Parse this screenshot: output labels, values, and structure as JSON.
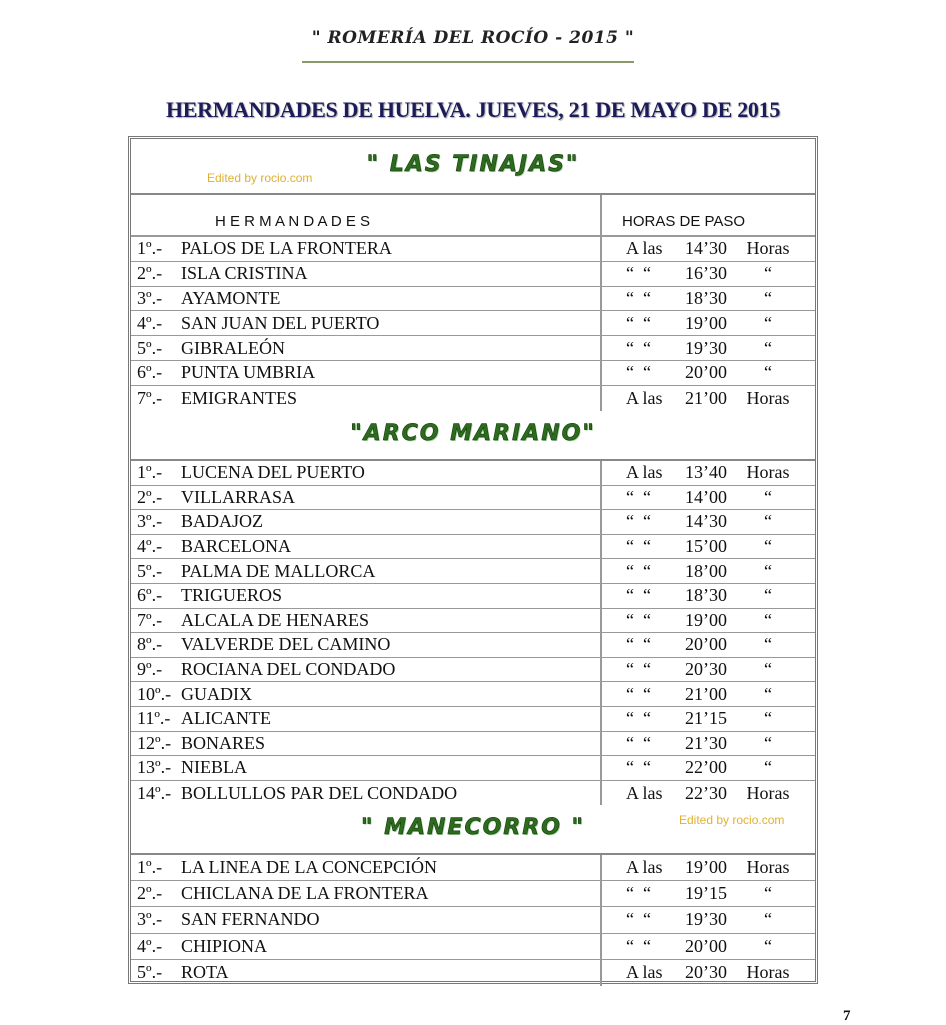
{
  "header": {
    "top_title": "\" ROMERÍA DEL ROCÍO - 2015 \"",
    "main_title": "HERMANDADES DE HUELVA. JUEVES, 21 DE MAYO DE 2015"
  },
  "columns": {
    "hermandades": "H E R M A N D A D E S",
    "horas": "HORAS DE PASO"
  },
  "watermark": "Edited by rocio.com",
  "sections": [
    {
      "title": "\" LAS TINAJAS\"",
      "rows": [
        {
          "n": "1º.-",
          "name": "PALOS DE LA FRONTERA",
          "pre": "A las",
          "time": "14’30",
          "suf": "Horas"
        },
        {
          "n": "2º.-",
          "name": "ISLA CRISTINA",
          "pre": "“  “",
          "time": "16’30",
          "suf": "“"
        },
        {
          "n": "3º.-",
          "name": "AYAMONTE",
          "pre": "“  “",
          "time": "18’30",
          "suf": "“"
        },
        {
          "n": "4º.-",
          "name": "SAN JUAN DEL PUERTO",
          "pre": "“  “",
          "time": "19’00",
          "suf": "“"
        },
        {
          "n": "5º.-",
          "name": "GIBRALEÓN",
          "pre": "“  “",
          "time": "19’30",
          "suf": "“"
        },
        {
          "n": "6º.-",
          "name": "PUNTA UMBRIA",
          "pre": "“  “",
          "time": "20’00",
          "suf": "“"
        },
        {
          "n": "7º.-",
          "name": "EMIGRANTES",
          "pre": "A las",
          "time": "21’00",
          "suf": "Horas"
        }
      ]
    },
    {
      "title": "\"ARCO MARIANO\"",
      "rows": [
        {
          "n": "1º.-",
          "name": "LUCENA DEL PUERTO",
          "pre": "A las",
          "time": "13’40",
          "suf": "Horas"
        },
        {
          "n": "2º.-",
          "name": "VILLARRASA",
          "pre": "“  “",
          "time": "14’00",
          "suf": "“"
        },
        {
          "n": "3º.-",
          "name": "BADAJOZ",
          "pre": "“  “",
          "time": "14’30",
          "suf": "“"
        },
        {
          "n": "4º.-",
          "name": "BARCELONA",
          "pre": "“  “",
          "time": "15’00",
          "suf": "“"
        },
        {
          "n": "5º.-",
          "name": "PALMA DE MALLORCA",
          "pre": "“  “",
          "time": "18’00",
          "suf": "“"
        },
        {
          "n": "6º.-",
          "name": "TRIGUEROS",
          "pre": "“  “",
          "time": "18’30",
          "suf": "“"
        },
        {
          "n": "7º.-",
          "name": "ALCALA DE HENARES",
          "pre": "“  “",
          "time": "19’00",
          "suf": "“"
        },
        {
          "n": "8º.-",
          "name": "VALVERDE DEL CAMINO",
          "pre": "“  “",
          "time": "20’00",
          "suf": "“"
        },
        {
          "n": "9º.-",
          "name": "ROCIANA DEL CONDADO",
          "pre": "“  “",
          "time": "20’30",
          "suf": "“"
        },
        {
          "n": "10º.-",
          "name": "GUADIX",
          "pre": "“  “",
          "time": "21’00",
          "suf": "“"
        },
        {
          "n": "11º.-",
          "name": "ALICANTE",
          "pre": "“  “",
          "time": "21’15",
          "suf": "“"
        },
        {
          "n": "12º.-",
          "name": "BONARES",
          "pre": "“  “",
          "time": "21’30",
          "suf": "“"
        },
        {
          "n": "13º.-",
          "name": "NIEBLA",
          "pre": "“  “",
          "time": "22’00",
          "suf": "“"
        },
        {
          "n": "14º.-",
          "name": "BOLLULLOS PAR DEL CONDADO",
          "pre": "A las",
          "time": "22’30",
          "suf": "Horas"
        }
      ]
    },
    {
      "title": "\" MANECORRO \"",
      "rows": [
        {
          "n": "1º.-",
          "name": "LA LINEA DE LA CONCEPCIÓN",
          "pre": "A las",
          "time": "19’00",
          "suf": "Horas"
        },
        {
          "n": "2º.-",
          "name": "CHICLANA DE LA FRONTERA",
          "pre": "“  “",
          "time": "19’15",
          "suf": "“"
        },
        {
          "n": "3º.-",
          "name": "SAN FERNANDO",
          "pre": "“  “",
          "time": "19’30",
          "suf": "“"
        },
        {
          "n": "4º.-",
          "name": "CHIPIONA",
          "pre": "“  “",
          "time": "20’00",
          "suf": "“"
        },
        {
          "n": "5º.-",
          "name": "ROTA",
          "pre": "A las",
          "time": "20’30",
          "suf": "Horas"
        }
      ]
    }
  ],
  "page_number": "7"
}
